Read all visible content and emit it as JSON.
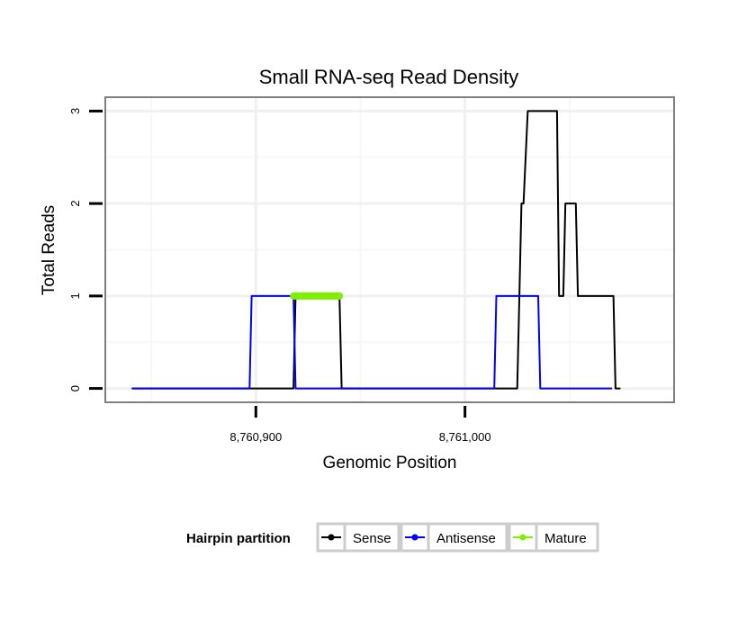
{
  "chart_data": {
    "type": "line",
    "title": "Small RNA-seq Read Density",
    "xlabel": "Genomic Position",
    "ylabel": "Total Reads",
    "xlim": [
      8760828,
      8761100
    ],
    "ylim": [
      -0.15,
      3.15
    ],
    "x_ticks": [
      8760900,
      8761000
    ],
    "x_tick_labels": [
      "8,760,900",
      "8,761,000"
    ],
    "x_minor_grid": [
      8760850,
      8760950,
      8761050
    ],
    "y_ticks": [
      0,
      1,
      2,
      3
    ],
    "y_tick_labels": [
      "0",
      "1",
      "2",
      "3"
    ],
    "y_minor_grid": [
      0.5,
      1.5,
      2.5
    ],
    "grid": true,
    "legend_position": "bottom",
    "legend_title": "Hairpin partition",
    "series": [
      {
        "name": "Sense",
        "color": "#000000",
        "width": 2,
        "x": [
          8760841,
          8760918,
          8760919,
          8760940,
          8760941,
          8761023,
          8761025,
          8761026,
          8761027,
          8761028,
          8761030,
          8761044,
          8761045,
          8761047,
          8761048,
          8761053,
          8761054,
          8761061,
          8761071,
          8761072,
          8761074
        ],
        "y": [
          0,
          0,
          1,
          1,
          0,
          0,
          0,
          1,
          2,
          2,
          3,
          3,
          1,
          1,
          2,
          2,
          1,
          1,
          1,
          0,
          0
        ]
      },
      {
        "name": "Antisense",
        "color": "#0000ff",
        "width": 2,
        "x": [
          8760841,
          8760897,
          8760898,
          8760918,
          8760919,
          8761014,
          8761015,
          8761035,
          8761036,
          8761070
        ],
        "y": [
          0,
          0,
          1,
          1,
          0,
          0,
          1,
          1,
          0,
          0
        ]
      },
      {
        "name": "Mature",
        "color": "#80ee00",
        "width": 8,
        "x": [
          8760918,
          8760940
        ],
        "y": [
          1,
          1
        ]
      }
    ]
  }
}
